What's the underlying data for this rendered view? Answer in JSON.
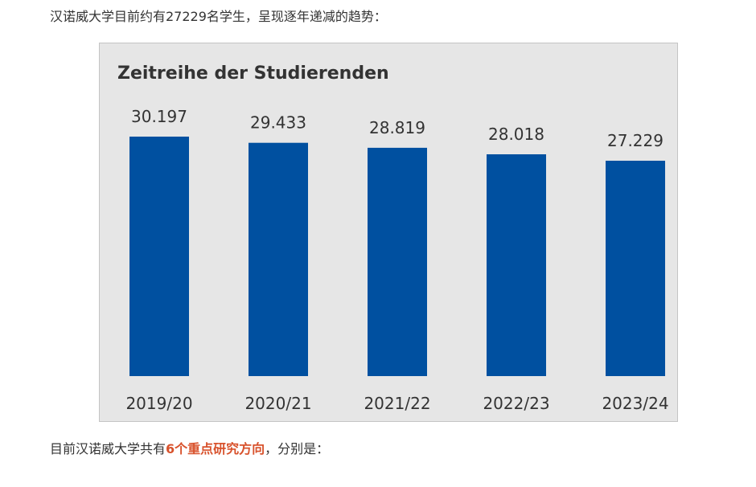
{
  "article": {
    "intro_text": "汉诺威大学目前约有27229名学生，呈现逐年递减的趋势：",
    "outro_prefix": "目前汉诺威大学共有",
    "outro_highlight": "6个重点研究方向",
    "outro_suffix": "，分别是："
  },
  "colors": {
    "bar": "#0050a0",
    "highlight": "#d8522c",
    "chart_background": "#e6e6e6"
  },
  "chart_data": {
    "type": "bar",
    "title": "Zeitreihe der Studierenden",
    "categories": [
      "2019/20",
      "2020/21",
      "2021/22",
      "2022/23",
      "2023/24"
    ],
    "values": [
      30197,
      29433,
      28819,
      28018,
      27229
    ],
    "value_labels": [
      "30.197",
      "29.433",
      "28.819",
      "28.018",
      "27.229"
    ],
    "xlabel": "",
    "ylabel": "",
    "grid": false,
    "legend": "none"
  }
}
